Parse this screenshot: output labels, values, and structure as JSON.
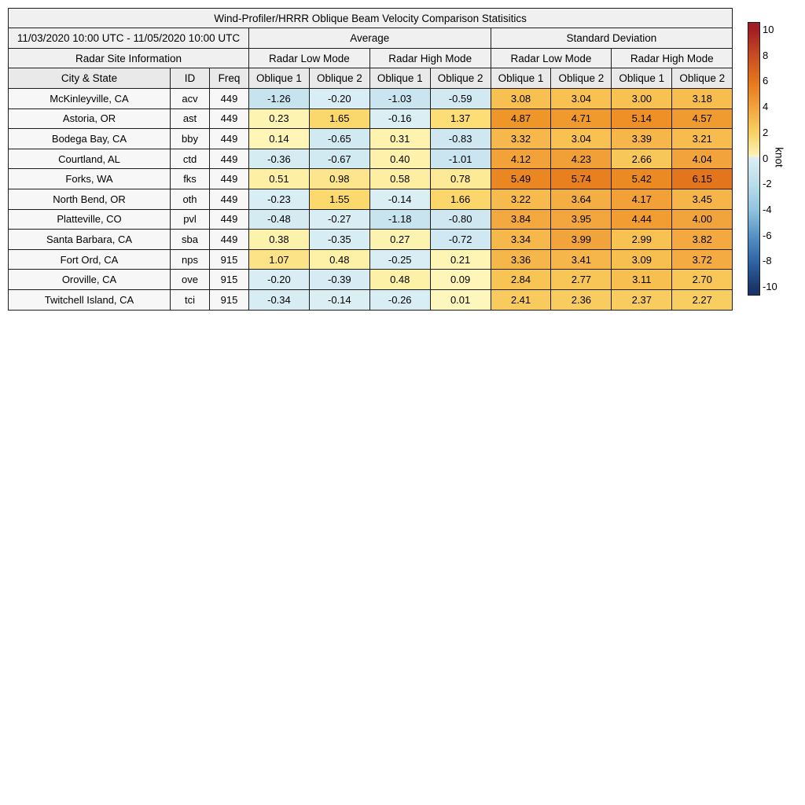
{
  "title": "Wind-Profiler/HRRR Oblique Beam Velocity Comparison Statisitics",
  "date_range": "11/03/2020 10:00 UTC - 11/05/2020 10:00 UTC",
  "sections": {
    "average": "Average",
    "std": "Standard Deviation",
    "site_info": "Radar Site Information",
    "low_mode": "Radar Low Mode",
    "high_mode": "Radar High Mode"
  },
  "columns": {
    "city": "City & State",
    "id": "ID",
    "freq": "Freq",
    "oblique1": "Oblique 1",
    "oblique2": "Oblique 2"
  },
  "colorbar": {
    "label": "knot",
    "vmin": -10,
    "vmax": 10,
    "ticks": [
      10,
      8,
      6,
      4,
      2,
      0,
      -2,
      -4,
      -6,
      -8,
      -10
    ],
    "gradient": [
      [
        0.0,
        "#9e1c25"
      ],
      [
        2.9,
        "#a51e24"
      ],
      [
        12.34,
        "#c74e23"
      ],
      [
        21.8,
        "#e4771c"
      ],
      [
        31.25,
        "#f2a43c"
      ],
      [
        40.7,
        "#f7d366"
      ],
      [
        48.6,
        "#fbf0b4"
      ],
      [
        49.1,
        "#fdf6bd"
      ],
      [
        49.35,
        "#dceef4"
      ],
      [
        59.6,
        "#b8dcea"
      ],
      [
        69.05,
        "#8fc3de"
      ],
      [
        78.5,
        "#5591c2"
      ],
      [
        87.95,
        "#2f63a6"
      ],
      [
        97.4,
        "#1b3769"
      ],
      [
        100.0,
        "#1a3467"
      ]
    ]
  },
  "colormap_stops": [
    [
      -2.0,
      "#b8dcea"
    ],
    [
      -0.01,
      "#ddeff5"
    ],
    [
      0.0,
      "#fef7bd"
    ],
    [
      0.5,
      "#fdf0a6"
    ],
    [
      1.0,
      "#fde58c"
    ],
    [
      1.5,
      "#fcda6e"
    ],
    [
      2.0,
      "#f9d266"
    ],
    [
      3.0,
      "#f8c252"
    ],
    [
      4.0,
      "#f2a43c"
    ],
    [
      5.0,
      "#ef9426"
    ],
    [
      6.0,
      "#e5791d"
    ],
    [
      7.0,
      "#d96420"
    ]
  ],
  "chart_data": {
    "type": "table",
    "title": "Wind-Profiler/HRRR Oblique Beam Velocity Comparison Statisitics",
    "units": "knot",
    "color_scale_range": [
      -10,
      10
    ],
    "value_columns": [
      "Average Radar Low Mode Oblique 1",
      "Average Radar Low Mode Oblique 2",
      "Average Radar High Mode Oblique 1",
      "Average Radar High Mode Oblique 2",
      "Standard Deviation Radar Low Mode Oblique 1",
      "Standard Deviation Radar Low Mode Oblique 2",
      "Standard Deviation Radar High Mode Oblique 1",
      "Standard Deviation Radar High Mode Oblique 2"
    ],
    "rows": [
      {
        "city": "McKinleyville, CA",
        "id": "acv",
        "freq": "449",
        "values": [
          -1.26,
          -0.2,
          -1.03,
          -0.59,
          3.08,
          3.04,
          3.0,
          3.18
        ]
      },
      {
        "city": "Astoria, OR",
        "id": "ast",
        "freq": "449",
        "values": [
          0.23,
          1.65,
          -0.16,
          1.37,
          4.87,
          4.71,
          5.14,
          4.57
        ]
      },
      {
        "city": "Bodega Bay, CA",
        "id": "bby",
        "freq": "449",
        "values": [
          0.14,
          -0.65,
          0.31,
          -0.83,
          3.32,
          3.04,
          3.39,
          3.21
        ]
      },
      {
        "city": "Courtland, AL",
        "id": "ctd",
        "freq": "449",
        "values": [
          -0.36,
          -0.67,
          0.4,
          -1.01,
          4.12,
          4.23,
          2.66,
          4.04
        ]
      },
      {
        "city": "Forks, WA",
        "id": "fks",
        "freq": "449",
        "values": [
          0.51,
          0.98,
          0.58,
          0.78,
          5.49,
          5.74,
          5.42,
          6.15
        ]
      },
      {
        "city": "North Bend, OR",
        "id": "oth",
        "freq": "449",
        "values": [
          -0.23,
          1.55,
          -0.14,
          1.66,
          3.22,
          3.64,
          4.17,
          3.45
        ]
      },
      {
        "city": "Platteville, CO",
        "id": "pvl",
        "freq": "449",
        "values": [
          -0.48,
          -0.27,
          -1.18,
          -0.8,
          3.84,
          3.95,
          4.44,
          4.0
        ]
      },
      {
        "city": "Santa Barbara, CA",
        "id": "sba",
        "freq": "449",
        "values": [
          0.38,
          -0.35,
          0.27,
          -0.72,
          3.34,
          3.99,
          2.99,
          3.82
        ]
      },
      {
        "city": "Fort Ord, CA",
        "id": "nps",
        "freq": "915",
        "values": [
          1.07,
          0.48,
          -0.25,
          0.21,
          3.36,
          3.41,
          3.09,
          3.72
        ]
      },
      {
        "city": "Oroville, CA",
        "id": "ove",
        "freq": "915",
        "values": [
          -0.2,
          -0.39,
          0.48,
          0.09,
          2.84,
          2.77,
          3.11,
          2.7
        ]
      },
      {
        "city": "Twitchell Island, CA",
        "id": "tci",
        "freq": "915",
        "values": [
          -0.34,
          -0.14,
          -0.26,
          0.01,
          2.41,
          2.36,
          2.37,
          2.27
        ]
      }
    ]
  }
}
